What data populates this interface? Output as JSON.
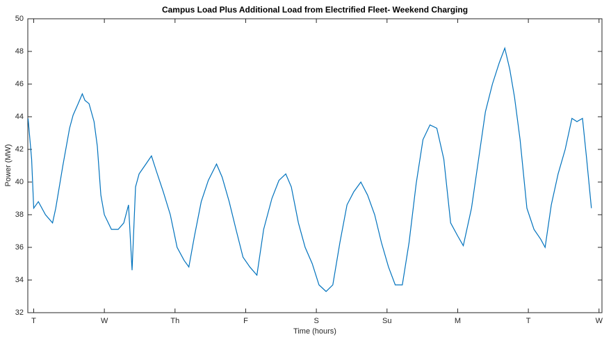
{
  "chart_data": {
    "type": "line",
    "title": "Campus Load Plus Additional Load from Electrified Fleet- Weekend Charging",
    "xlabel": "Time (hours)",
    "ylabel": "Power (MW)",
    "x": [
      -1.9,
      -0.7,
      0,
      1.6,
      4,
      6.4,
      7.5,
      9.9,
      12.2,
      13.4,
      15.1,
      16.5,
      17.4,
      18.8,
      20.5,
      21.6,
      22.8,
      24,
      26.4,
      28.7,
      30.6,
      32.2,
      33.4,
      34.6,
      35.8,
      38.1,
      40,
      41.6,
      44,
      46.4,
      48.7,
      51.1,
      52.7,
      54.6,
      56.9,
      59.3,
      62.1,
      64,
      66.4,
      68.7,
      71.1,
      73.4,
      75.8,
      78.1,
      80.9,
      83.3,
      85.6,
      87.5,
      89.9,
      92.2,
      94.6,
      96.9,
      99.3,
      101.6,
      104,
      106.4,
      108.7,
      111.1,
      113.4,
      115.8,
      118.1,
      120.5,
      122.8,
      125.2,
      127.5,
      129.9,
      132.2,
      134.6,
      136.9,
      139.3,
      141.6,
      144,
      145.9,
      148.7,
      151.1,
      153.4,
      155.8,
      158.1,
      160,
      161.7,
      163.3,
      165.2,
      167.5,
      169.9,
      172.2,
      173.7,
      175.8,
      178.1,
      180.5,
      182.8,
      184.5,
      186.4,
      187.8,
      189.4
    ],
    "values": [
      43.9,
      41.4,
      38.4,
      38.8,
      38,
      37.5,
      38.4,
      41,
      43.3,
      44.1,
      44.8,
      45.4,
      45,
      44.8,
      43.7,
      42.2,
      39.2,
      38,
      37.1,
      37.1,
      37.5,
      38.6,
      34.6,
      39.7,
      40.5,
      41.1,
      41.6,
      40.7,
      39.4,
      38,
      36,
      35.2,
      34.8,
      36.7,
      38.8,
      40.1,
      41.1,
      40.3,
      38.8,
      37.1,
      35.4,
      34.8,
      34.3,
      37.1,
      39,
      40.1,
      40.5,
      39.7,
      37.5,
      36,
      35,
      33.7,
      33.3,
      33.7,
      36.3,
      38.6,
      39.4,
      40,
      39.2,
      38,
      36.3,
      34.8,
      33.7,
      33.7,
      36.3,
      39.9,
      42.6,
      43.5,
      43.3,
      41.4,
      37.5,
      36.7,
      36.1,
      38.4,
      41.4,
      44.3,
      46,
      47.3,
      48.2,
      46.9,
      45.2,
      42.6,
      38.4,
      37.1,
      36.5,
      36,
      38.6,
      40.5,
      42,
      43.9,
      43.7,
      43.9,
      41.4,
      38.4
    ],
    "color": "#0072bd",
    "xlim": [
      -2,
      193
    ],
    "ylim": [
      32,
      50
    ],
    "xticks": [
      {
        "value": 0,
        "label": "T"
      },
      {
        "value": 24,
        "label": "W"
      },
      {
        "value": 48,
        "label": "Th"
      },
      {
        "value": 72,
        "label": "F"
      },
      {
        "value": 96,
        "label": "S"
      },
      {
        "value": 120,
        "label": "Su"
      },
      {
        "value": 144,
        "label": "M"
      },
      {
        "value": 168,
        "label": "T"
      },
      {
        "value": 192,
        "label": "W"
      }
    ],
    "yticks": [
      32,
      34,
      36,
      38,
      40,
      42,
      44,
      46,
      48,
      50
    ]
  }
}
